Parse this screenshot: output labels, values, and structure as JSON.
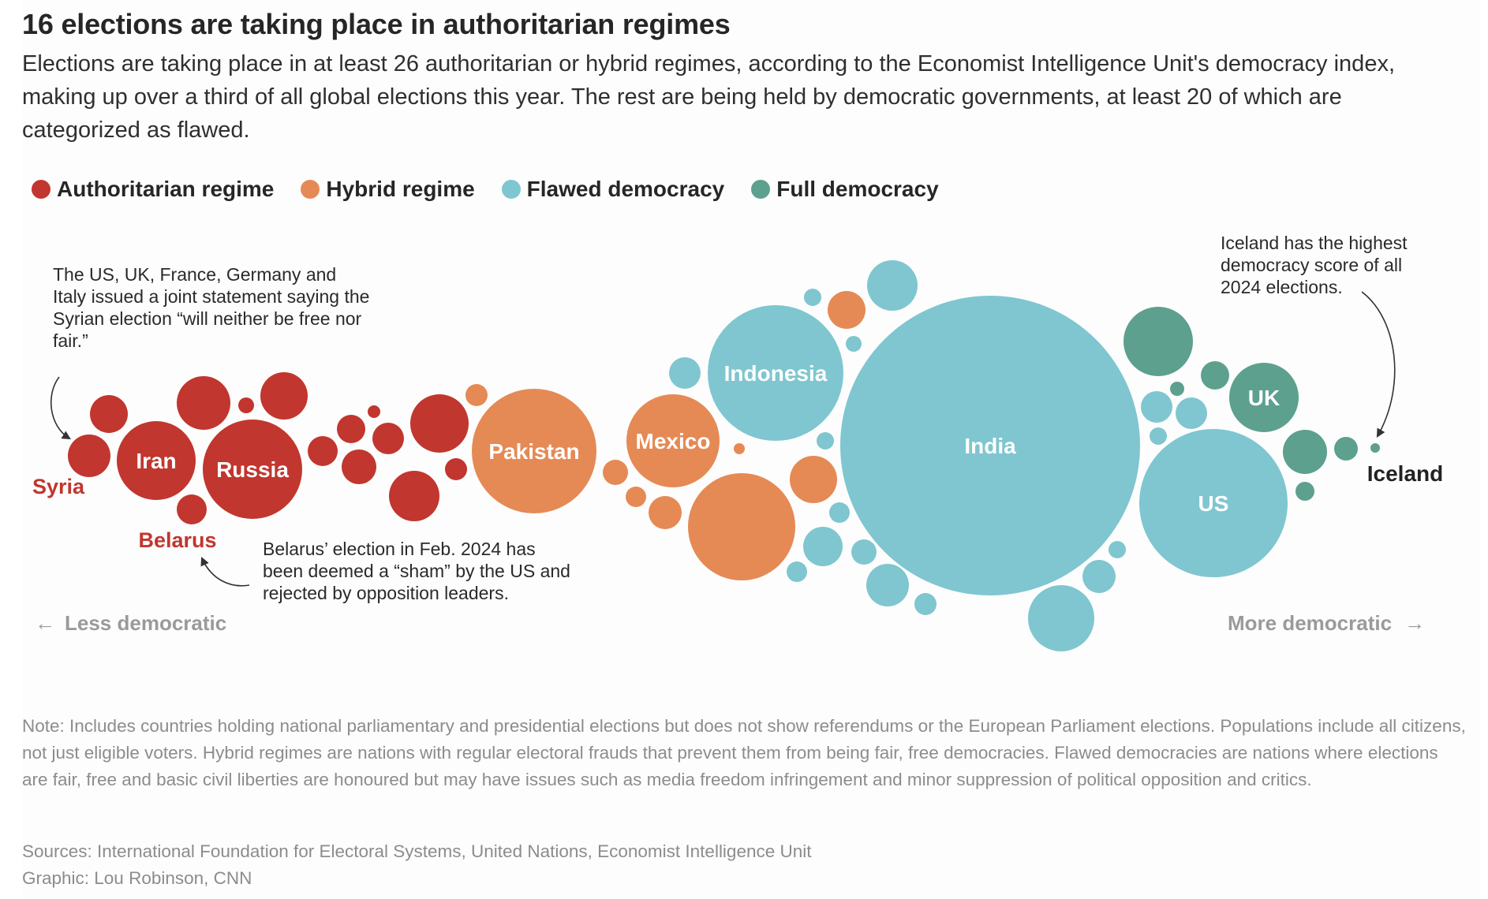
{
  "chart_data": {
    "type": "bubble",
    "title": "16 elections are taking place in authoritarian regimes",
    "subtitle": "Elections are taking place in at least 26 authoritarian or hybrid regimes, according to the Economist Intelligence Unit's democracy index, making up over a third of all global elections this year. The rest are being held by democratic governments, at least 20 of which are categorized as flawed.",
    "legend": [
      {
        "name": "Authoritarian regime",
        "color": "#c1362e"
      },
      {
        "name": "Hybrid regime",
        "color": "#e58a55"
      },
      {
        "name": "Flawed democracy",
        "color": "#7fc6d0"
      },
      {
        "name": "Full democracy",
        "color": "#5da08e"
      }
    ],
    "bubbles": [
      {
        "label": "Syria",
        "category": "Authoritarian regime"
      },
      {
        "label": "Iran",
        "category": "Authoritarian regime"
      },
      {
        "label": "Russia",
        "category": "Authoritarian regime"
      },
      {
        "label": "Belarus",
        "category": "Authoritarian regime"
      },
      {
        "label": "Pakistan",
        "category": "Hybrid regime"
      },
      {
        "label": "Mexico",
        "category": "Hybrid regime"
      },
      {
        "label": "Indonesia",
        "category": "Flawed democracy"
      },
      {
        "label": "India",
        "category": "Flawed democracy"
      },
      {
        "label": "US",
        "category": "Flawed democracy"
      },
      {
        "label": "UK",
        "category": "Full democracy"
      },
      {
        "label": "Iceland",
        "category": "Full democracy"
      }
    ],
    "axis": {
      "left": "Less democratic",
      "right": "More democratic",
      "left_arrow": "←",
      "right_arrow": "→"
    },
    "annotations": {
      "syria": "The US, UK, France, Germany and Italy issued a joint statement saying the Syrian election “will neither be free nor fair.”",
      "belarus": "Belarus’ election in Feb. 2024 has been deemed a “sham” by the US and rejected by opposition leaders.",
      "iceland": "Iceland has the highest democracy score of all 2024 elections."
    }
  },
  "footer": {
    "note": "Note: Includes countries holding national parliamentary and presidential elections but does not show referendums or the European Parliament elections. Populations include all citizens, not just eligible voters. Hybrid regimes are nations with regular electoral frauds that prevent them from being fair, free democracies. Flawed democracies are nations where elections are fair, free and basic civil liberties are honoured but may have issues such as media freedom infringement and minor suppression of political opposition and critics.",
    "sources": "Sources: International Foundation for Electoral Systems, United Nations, Economist Intelligence Unit",
    "credit": "Graphic: Lou Robinson, CNN"
  }
}
